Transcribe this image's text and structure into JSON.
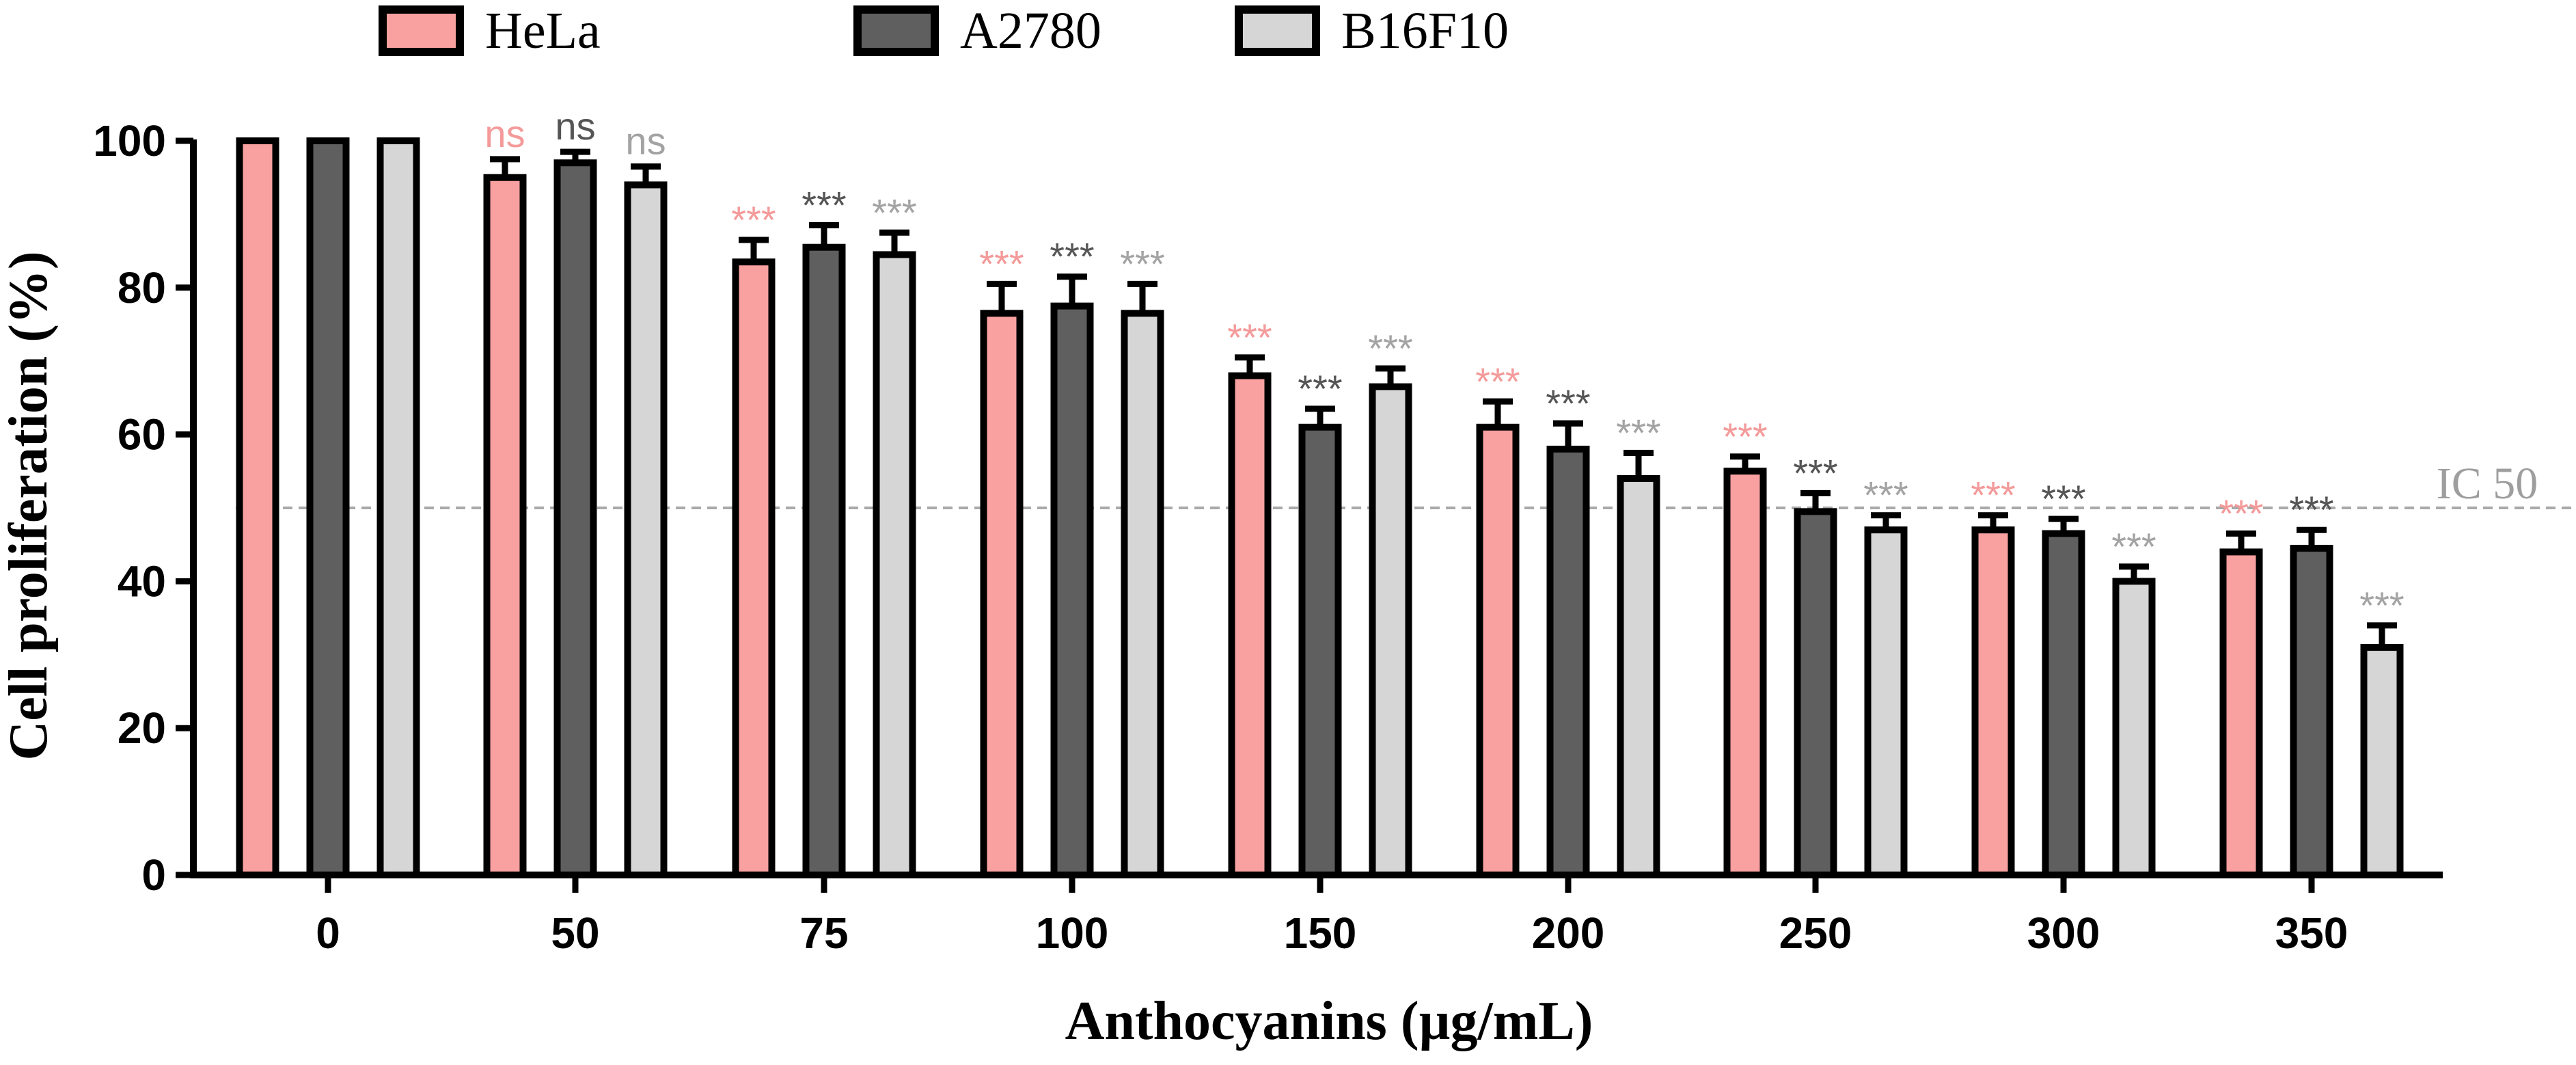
{
  "chart_data": {
    "type": "bar",
    "title": "",
    "xlabel": "Anthocyanins (µg/mL)",
    "ylabel": "Cell proliferation (%)",
    "ylim": [
      0,
      100
    ],
    "yticks": [
      0,
      20,
      40,
      60,
      80,
      100
    ],
    "categories": [
      "0",
      "50",
      "75",
      "100",
      "150",
      "200",
      "250",
      "300",
      "350"
    ],
    "legend_position": "top",
    "series": [
      {
        "name": "HeLa",
        "color": "#f9a0a0",
        "values": [
          100,
          95,
          83.5,
          76.5,
          68,
          61,
          55,
          47,
          44
        ],
        "errors": [
          0,
          2.5,
          3,
          4,
          2.5,
          3.5,
          2,
          2,
          2.5
        ],
        "significance": [
          "",
          "ns",
          "***",
          "***",
          "***",
          "***",
          "***",
          "***",
          "***"
        ],
        "sig_color": "#f49a9a"
      },
      {
        "name": "A2780",
        "color": "#5f5f5f",
        "values": [
          100,
          97,
          85.5,
          77.5,
          61,
          58,
          49.5,
          46.5,
          44.5
        ],
        "errors": [
          0,
          1.5,
          3,
          4,
          2.5,
          3.5,
          2.5,
          2,
          2.5
        ],
        "significance": [
          "",
          "ns",
          "***",
          "***",
          "***",
          "***",
          "***",
          "***",
          "***"
        ],
        "sig_color": "#555555"
      },
      {
        "name": "B16F10",
        "color": "#d6d6d6",
        "values": [
          100,
          94,
          84.5,
          76.5,
          66.5,
          54,
          47,
          40,
          31
        ],
        "errors": [
          0,
          2.5,
          3,
          4,
          2.5,
          3.5,
          2,
          2,
          3
        ],
        "significance": [
          "",
          "ns",
          "***",
          "***",
          "***",
          "***",
          "***",
          "***",
          "***"
        ],
        "sig_color": "#a3a3a3"
      }
    ],
    "reference_line": {
      "value": 50,
      "label": "IC 50",
      "color": "#a9a9a9"
    }
  }
}
